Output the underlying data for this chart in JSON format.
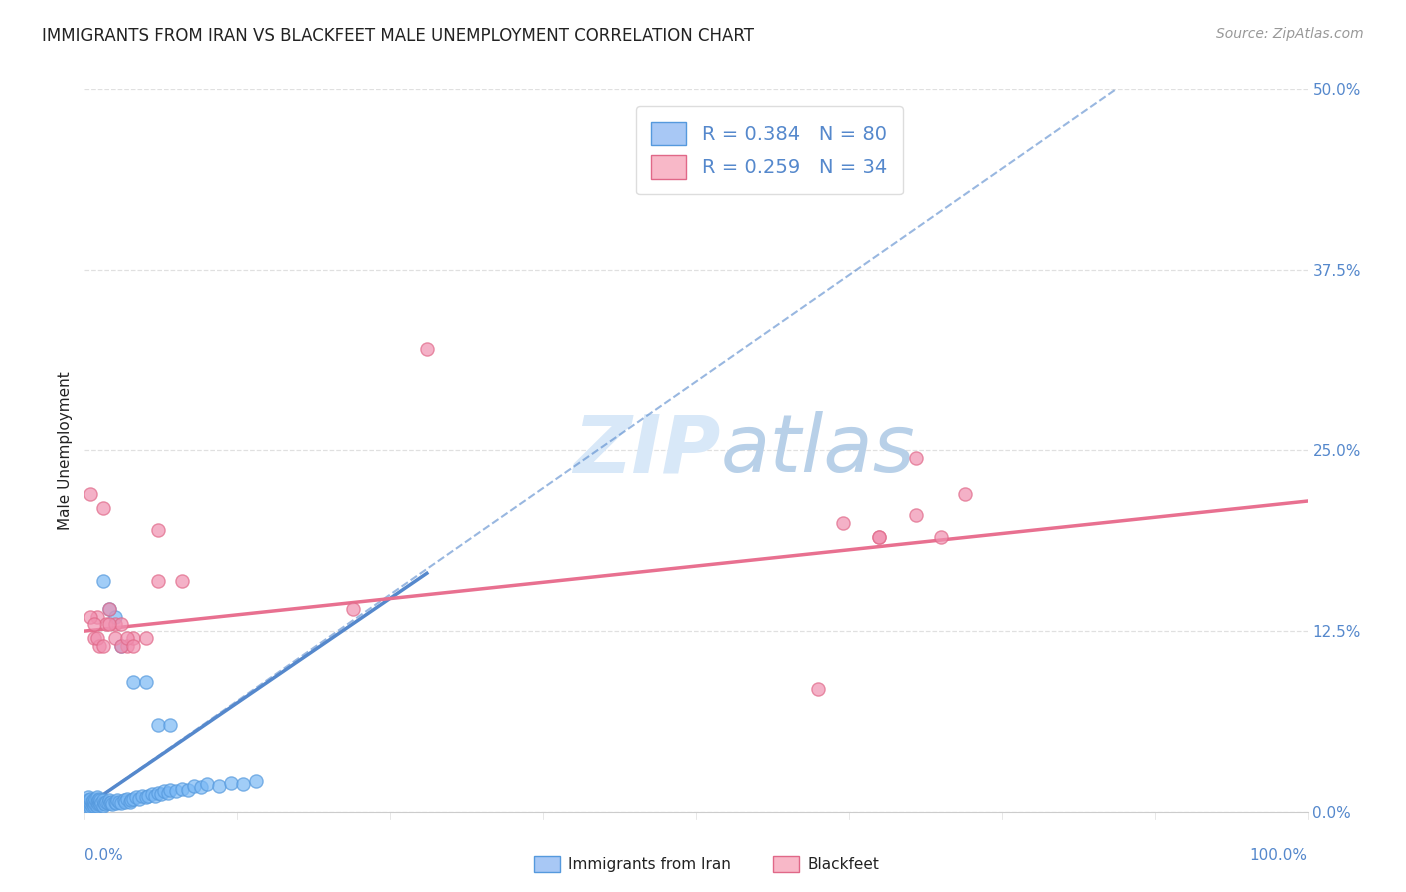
{
  "title": "IMMIGRANTS FROM IRAN VS BLACKFEET MALE UNEMPLOYMENT CORRELATION CHART",
  "source": "Source: ZipAtlas.com",
  "ylabel": "Male Unemployment",
  "ytick_labels": [
    "0.0%",
    "12.5%",
    "25.0%",
    "37.5%",
    "50.0%"
  ],
  "ytick_values": [
    0.0,
    0.125,
    0.25,
    0.375,
    0.5
  ],
  "xlim": [
    0.0,
    1.0
  ],
  "ylim": [
    0.0,
    0.5
  ],
  "legend_label_iran": "R = 0.384   N = 80",
  "legend_label_bf": "R = 0.259   N = 34",
  "legend_color_iran": "#a8c8f5",
  "legend_color_bf": "#f8b8c8",
  "iran_scatter_x": [
    0.001,
    0.002,
    0.002,
    0.003,
    0.003,
    0.003,
    0.004,
    0.004,
    0.005,
    0.005,
    0.005,
    0.006,
    0.006,
    0.007,
    0.007,
    0.008,
    0.008,
    0.009,
    0.009,
    0.01,
    0.01,
    0.01,
    0.011,
    0.011,
    0.012,
    0.012,
    0.013,
    0.013,
    0.014,
    0.015,
    0.015,
    0.016,
    0.017,
    0.018,
    0.019,
    0.02,
    0.021,
    0.022,
    0.023,
    0.025,
    0.026,
    0.027,
    0.028,
    0.03,
    0.032,
    0.033,
    0.035,
    0.037,
    0.038,
    0.04,
    0.042,
    0.045,
    0.047,
    0.05,
    0.052,
    0.055,
    0.058,
    0.06,
    0.063,
    0.065,
    0.068,
    0.07,
    0.075,
    0.08,
    0.085,
    0.09,
    0.095,
    0.1,
    0.11,
    0.12,
    0.13,
    0.14,
    0.015,
    0.02,
    0.025,
    0.03,
    0.04,
    0.05,
    0.06,
    0.07
  ],
  "iran_scatter_y": [
    0.005,
    0.005,
    0.008,
    0.003,
    0.007,
    0.01,
    0.005,
    0.008,
    0.003,
    0.006,
    0.009,
    0.004,
    0.007,
    0.005,
    0.008,
    0.004,
    0.007,
    0.005,
    0.009,
    0.004,
    0.007,
    0.01,
    0.005,
    0.008,
    0.006,
    0.009,
    0.005,
    0.008,
    0.006,
    0.004,
    0.008,
    0.006,
    0.005,
    0.007,
    0.006,
    0.008,
    0.006,
    0.007,
    0.005,
    0.007,
    0.006,
    0.008,
    0.007,
    0.006,
    0.008,
    0.007,
    0.009,
    0.007,
    0.008,
    0.009,
    0.01,
    0.009,
    0.011,
    0.01,
    0.011,
    0.012,
    0.011,
    0.013,
    0.012,
    0.014,
    0.013,
    0.015,
    0.014,
    0.016,
    0.015,
    0.018,
    0.017,
    0.019,
    0.018,
    0.02,
    0.019,
    0.021,
    0.16,
    0.14,
    0.135,
    0.115,
    0.09,
    0.09,
    0.06,
    0.06
  ],
  "iran_trendline_x": [
    0.0,
    0.28
  ],
  "iran_trendline_y": [
    0.003,
    0.165
  ],
  "blackfeet_scatter_x": [
    0.005,
    0.008,
    0.01,
    0.012,
    0.015,
    0.018,
    0.02,
    0.025,
    0.03,
    0.035,
    0.04,
    0.05,
    0.06,
    0.08,
    0.22,
    0.28,
    0.6,
    0.62,
    0.65,
    0.68,
    0.005,
    0.008,
    0.01,
    0.015,
    0.02,
    0.025,
    0.03,
    0.035,
    0.04,
    0.06,
    0.65,
    0.68,
    0.7,
    0.72
  ],
  "blackfeet_scatter_y": [
    0.22,
    0.12,
    0.135,
    0.115,
    0.21,
    0.13,
    0.14,
    0.13,
    0.13,
    0.115,
    0.12,
    0.12,
    0.16,
    0.16,
    0.14,
    0.32,
    0.085,
    0.2,
    0.19,
    0.205,
    0.135,
    0.13,
    0.12,
    0.115,
    0.13,
    0.12,
    0.115,
    0.12,
    0.115,
    0.195,
    0.19,
    0.245,
    0.19,
    0.22
  ],
  "blackfeet_trendline_x": [
    0.0,
    1.0
  ],
  "blackfeet_trendline_y": [
    0.125,
    0.215
  ],
  "watermark_zip": "ZIP",
  "watermark_atlas": "atlas",
  "title_color": "#222222",
  "source_color": "#999999",
  "scatter_iran_color": "#7ab8f5",
  "scatter_iran_edge": "#5599dd",
  "scatter_bf_color": "#f090b0",
  "scatter_bf_edge": "#e06888",
  "trend_iran_color": "#5588cc",
  "trend_bf_color": "#e87090",
  "axis_label_color": "#5588cc",
  "grid_color": "#e0e0e0",
  "background_color": "#ffffff",
  "title_fontsize": 12,
  "source_fontsize": 10,
  "ylabel_fontsize": 11,
  "tick_fontsize": 11,
  "legend_fontsize": 14,
  "watermark_zip_fontsize": 58,
  "watermark_atlas_fontsize": 58,
  "watermark_color": "#d8e8f8",
  "bottom_label_iran": "Immigrants from Iran",
  "bottom_label_bf": "Blackfeet",
  "xtick_left": "0.0%",
  "xtick_right": "100.0%"
}
